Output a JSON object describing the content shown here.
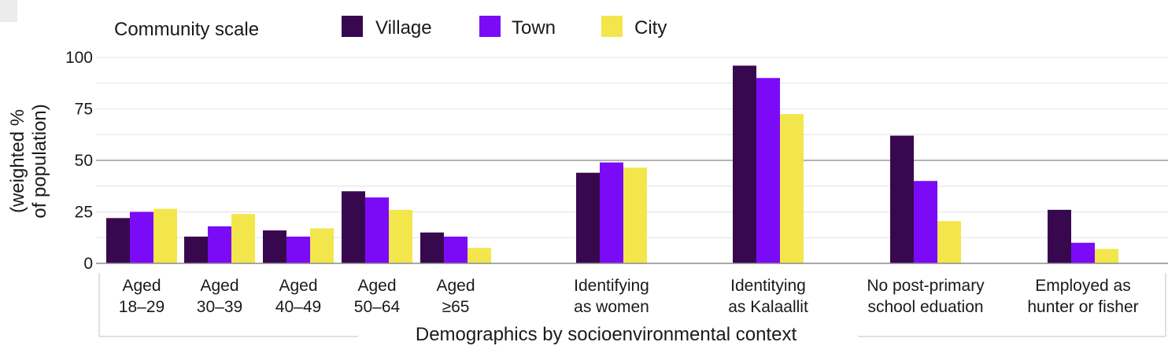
{
  "chart_data": {
    "type": "bar",
    "legend": {
      "title": "Community scale",
      "placement": "top-left"
    },
    "series": [
      {
        "name": "Village",
        "color": "#38084f",
        "values": [
          22,
          13,
          16,
          35,
          15,
          44,
          96,
          62,
          26
        ]
      },
      {
        "name": "Town",
        "color": "#7b0bf7",
        "values": [
          25,
          18,
          13,
          32,
          13,
          49,
          90,
          40,
          10
        ]
      },
      {
        "name": "City",
        "color": "#f2e64c",
        "values": [
          26.5,
          24,
          17,
          26,
          7.5,
          46.5,
          72.5,
          20.5,
          7
        ]
      }
    ],
    "categories": [
      [
        "Aged",
        "18–29"
      ],
      [
        "Aged",
        "30–39"
      ],
      [
        "Aged",
        "40–49"
      ],
      [
        "Aged",
        "50–64"
      ],
      [
        "Aged",
        "≥65"
      ],
      [
        "Identifying",
        "as women"
      ],
      [
        "Identitying",
        "as Kalaallit"
      ],
      [
        "No post-primary",
        "school eduation"
      ],
      [
        "Employed as",
        "hunter or fisher"
      ]
    ],
    "ylabel": [
      "(weighted %",
      "of population)"
    ],
    "xlabel": "Demographics by socioenvironmental context",
    "yticks": [
      0,
      25,
      50,
      75,
      100
    ],
    "ylim": [
      0,
      100
    ],
    "grid": true,
    "reference_line": 50
  }
}
